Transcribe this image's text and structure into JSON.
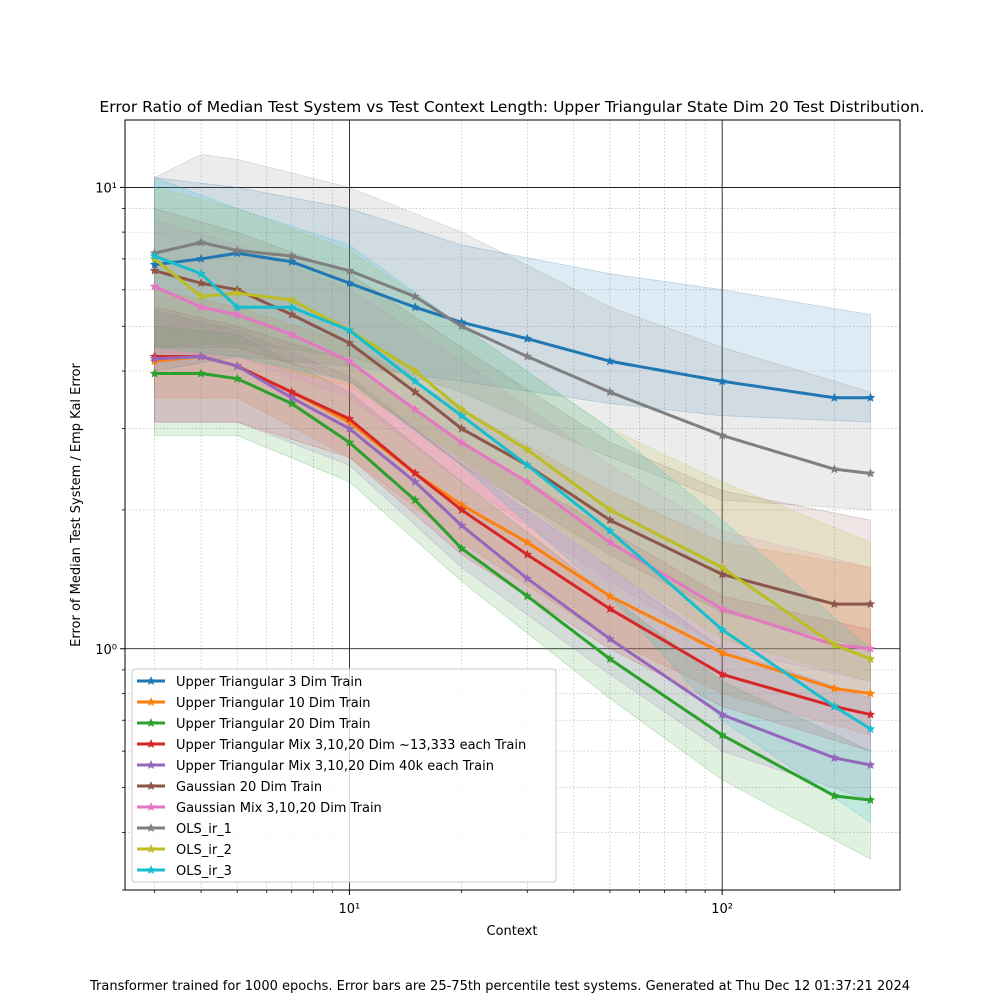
{
  "chart_data": {
    "type": "line",
    "title": "Error Ratio of Median Test System vs Test Context Length: Upper Triangular State Dim 20 Test Distribution.",
    "xlabel": "Context",
    "ylabel": "Error of Median Test System / Emp Kal Error",
    "footer": "Transformer trained for 1000 epochs. Error bars are 25-75th percentile test systems. Generated at Thu Dec 12 01:37:21 2024",
    "x_scale": "log",
    "y_scale": "log",
    "xlim": [
      2.5,
      300
    ],
    "ylim": [
      0.3,
      14
    ],
    "x_ticks": [
      {
        "value": 10,
        "label": "10¹"
      },
      {
        "value": 100,
        "label": "10²"
      }
    ],
    "y_ticks": [
      {
        "value": 1,
        "label": "10⁰"
      },
      {
        "value": 10,
        "label": "10¹"
      }
    ],
    "grid": true,
    "legend_position": "lower-left",
    "series": [
      {
        "name": "Upper Triangular 3 Dim Train",
        "color": "#1f77b4",
        "points": [
          [
            3,
            6.8
          ],
          [
            4,
            7.0
          ],
          [
            5,
            7.2
          ],
          [
            7,
            6.9
          ],
          [
            10,
            6.2
          ],
          [
            15,
            5.5
          ],
          [
            20,
            5.1
          ],
          [
            30,
            4.7
          ],
          [
            50,
            4.2
          ],
          [
            100,
            3.8
          ],
          [
            200,
            3.5
          ],
          [
            250,
            3.5
          ]
        ],
        "band_low": [
          [
            3,
            4.0
          ],
          [
            5,
            4.3
          ],
          [
            10,
            4.1
          ],
          [
            20,
            3.8
          ],
          [
            50,
            3.4
          ],
          [
            100,
            3.2
          ],
          [
            250,
            3.1
          ]
        ],
        "band_high": [
          [
            3,
            10.5
          ],
          [
            5,
            10.0
          ],
          [
            10,
            9.0
          ],
          [
            20,
            7.5
          ],
          [
            50,
            6.5
          ],
          [
            100,
            6.0
          ],
          [
            250,
            5.3
          ]
        ]
      },
      {
        "name": "Upper Triangular 10 Dim Train",
        "color": "#ff7f0e",
        "points": [
          [
            3,
            4.2
          ],
          [
            4,
            4.3
          ],
          [
            5,
            4.1
          ],
          [
            7,
            3.6
          ],
          [
            10,
            3.1
          ],
          [
            15,
            2.4
          ],
          [
            20,
            2.05
          ],
          [
            30,
            1.7
          ],
          [
            50,
            1.3
          ],
          [
            100,
            0.98
          ],
          [
            200,
            0.82
          ],
          [
            250,
            0.8
          ]
        ],
        "band_low": [
          [
            3,
            3.5
          ],
          [
            5,
            3.5
          ],
          [
            10,
            2.6
          ],
          [
            20,
            1.7
          ],
          [
            50,
            1.05
          ],
          [
            100,
            0.8
          ],
          [
            250,
            0.65
          ]
        ],
        "band_high": [
          [
            3,
            6.0
          ],
          [
            5,
            5.5
          ],
          [
            10,
            4.6
          ],
          [
            20,
            3.3
          ],
          [
            50,
            2.2
          ],
          [
            100,
            1.7
          ],
          [
            250,
            1.5
          ]
        ]
      },
      {
        "name": "Upper Triangular 20 Dim Train",
        "color": "#2ca02c",
        "points": [
          [
            3,
            3.95
          ],
          [
            4,
            3.95
          ],
          [
            5,
            3.85
          ],
          [
            7,
            3.4
          ],
          [
            10,
            2.8
          ],
          [
            15,
            2.1
          ],
          [
            20,
            1.65
          ],
          [
            30,
            1.3
          ],
          [
            50,
            0.95
          ],
          [
            100,
            0.65
          ],
          [
            200,
            0.48
          ],
          [
            250,
            0.47
          ]
        ],
        "band_low": [
          [
            3,
            2.9
          ],
          [
            5,
            2.9
          ],
          [
            10,
            2.3
          ],
          [
            20,
            1.4
          ],
          [
            50,
            0.78
          ],
          [
            100,
            0.52
          ],
          [
            250,
            0.35
          ]
        ],
        "band_high": [
          [
            3,
            5.0
          ],
          [
            5,
            4.8
          ],
          [
            10,
            3.6
          ],
          [
            20,
            2.3
          ],
          [
            50,
            1.3
          ],
          [
            100,
            0.85
          ],
          [
            250,
            0.6
          ]
        ]
      },
      {
        "name": "Upper Triangular Mix 3,10,20 Dim ~13,333 each Train",
        "color": "#d62728",
        "points": [
          [
            3,
            4.3
          ],
          [
            4,
            4.3
          ],
          [
            5,
            4.1
          ],
          [
            7,
            3.6
          ],
          [
            10,
            3.15
          ],
          [
            15,
            2.4
          ],
          [
            20,
            2.0
          ],
          [
            30,
            1.6
          ],
          [
            50,
            1.22
          ],
          [
            100,
            0.88
          ],
          [
            200,
            0.75
          ],
          [
            250,
            0.72
          ]
        ],
        "band_low": [
          [
            3,
            3.1
          ],
          [
            5,
            3.1
          ],
          [
            10,
            2.6
          ],
          [
            20,
            1.6
          ],
          [
            50,
            1.0
          ],
          [
            100,
            0.75
          ],
          [
            250,
            0.6
          ]
        ],
        "band_high": [
          [
            3,
            5.5
          ],
          [
            5,
            5.0
          ],
          [
            10,
            4.2
          ],
          [
            20,
            2.8
          ],
          [
            50,
            1.8
          ],
          [
            100,
            1.3
          ],
          [
            250,
            1.1
          ]
        ]
      },
      {
        "name": "Upper Triangular Mix 3,10,20 Dim 40k each Train",
        "color": "#9467bd",
        "points": [
          [
            3,
            4.25
          ],
          [
            4,
            4.3
          ],
          [
            5,
            4.1
          ],
          [
            7,
            3.5
          ],
          [
            10,
            3.0
          ],
          [
            15,
            2.3
          ],
          [
            20,
            1.85
          ],
          [
            30,
            1.42
          ],
          [
            50,
            1.05
          ],
          [
            100,
            0.72
          ],
          [
            200,
            0.58
          ],
          [
            250,
            0.56
          ]
        ],
        "band_low": [
          [
            3,
            3.1
          ],
          [
            5,
            3.1
          ],
          [
            10,
            2.5
          ],
          [
            20,
            1.5
          ],
          [
            50,
            0.88
          ],
          [
            100,
            0.6
          ],
          [
            250,
            0.47
          ]
        ],
        "band_high": [
          [
            3,
            5.4
          ],
          [
            5,
            4.9
          ],
          [
            10,
            3.9
          ],
          [
            20,
            2.5
          ],
          [
            50,
            1.5
          ],
          [
            100,
            1.0
          ],
          [
            250,
            0.78
          ]
        ]
      },
      {
        "name": "Gaussian 20 Dim Train",
        "color": "#8c564b",
        "points": [
          [
            3,
            6.6
          ],
          [
            4,
            6.2
          ],
          [
            5,
            6.0
          ],
          [
            7,
            5.3
          ],
          [
            10,
            4.6
          ],
          [
            15,
            3.6
          ],
          [
            20,
            3.0
          ],
          [
            30,
            2.5
          ],
          [
            50,
            1.9
          ],
          [
            100,
            1.45
          ],
          [
            200,
            1.25
          ],
          [
            250,
            1.25
          ]
        ],
        "band_low": [
          [
            3,
            4.5
          ],
          [
            5,
            4.5
          ],
          [
            10,
            3.8
          ],
          [
            20,
            2.5
          ],
          [
            50,
            1.6
          ],
          [
            100,
            1.2
          ],
          [
            250,
            1.0
          ]
        ],
        "band_high": [
          [
            3,
            9.0
          ],
          [
            5,
            8.0
          ],
          [
            10,
            6.5
          ],
          [
            20,
            4.5
          ],
          [
            50,
            2.8
          ],
          [
            100,
            2.2
          ],
          [
            250,
            1.9
          ]
        ]
      },
      {
        "name": "Gaussian Mix 3,10,20 Dim Train",
        "color": "#e377c2",
        "points": [
          [
            3,
            6.1
          ],
          [
            4,
            5.5
          ],
          [
            5,
            5.3
          ],
          [
            7,
            4.8
          ],
          [
            10,
            4.2
          ],
          [
            15,
            3.3
          ],
          [
            20,
            2.8
          ],
          [
            30,
            2.3
          ],
          [
            50,
            1.7
          ],
          [
            100,
            1.22
          ],
          [
            200,
            1.02
          ],
          [
            250,
            1.0
          ]
        ],
        "band_low": [
          [
            3,
            4.4
          ],
          [
            5,
            4.3
          ],
          [
            10,
            3.5
          ],
          [
            20,
            2.3
          ],
          [
            50,
            1.4
          ],
          [
            100,
            1.0
          ],
          [
            250,
            0.85
          ]
        ],
        "band_high": [
          [
            3,
            8.5
          ],
          [
            5,
            7.5
          ],
          [
            10,
            6.0
          ],
          [
            20,
            4.2
          ],
          [
            50,
            2.5
          ],
          [
            100,
            1.8
          ],
          [
            250,
            1.5
          ]
        ]
      },
      {
        "name": "OLS_ir_1",
        "color": "#7f7f7f",
        "points": [
          [
            3,
            7.2
          ],
          [
            4,
            7.6
          ],
          [
            5,
            7.3
          ],
          [
            7,
            7.1
          ],
          [
            10,
            6.6
          ],
          [
            15,
            5.8
          ],
          [
            20,
            5.0
          ],
          [
            30,
            4.3
          ],
          [
            50,
            3.6
          ],
          [
            100,
            2.9
          ],
          [
            200,
            2.45
          ],
          [
            250,
            2.4
          ]
        ],
        "band_low": [
          [
            3,
            4.5
          ],
          [
            5,
            4.6
          ],
          [
            10,
            4.3
          ],
          [
            20,
            3.6
          ],
          [
            50,
            2.6
          ],
          [
            100,
            2.1
          ],
          [
            250,
            2.0
          ]
        ],
        "band_high": [
          [
            3,
            10.5
          ],
          [
            4,
            11.8
          ],
          [
            5,
            11.5
          ],
          [
            10,
            10.0
          ],
          [
            20,
            8.0
          ],
          [
            50,
            5.5
          ],
          [
            100,
            4.5
          ],
          [
            250,
            3.6
          ]
        ]
      },
      {
        "name": "OLS_ir_2",
        "color": "#bcbd22",
        "points": [
          [
            3,
            7.0
          ],
          [
            4,
            5.8
          ],
          [
            5,
            5.9
          ],
          [
            7,
            5.7
          ],
          [
            10,
            4.9
          ],
          [
            15,
            4.0
          ],
          [
            20,
            3.3
          ],
          [
            30,
            2.7
          ],
          [
            50,
            2.0
          ],
          [
            100,
            1.5
          ],
          [
            200,
            1.02
          ],
          [
            250,
            0.95
          ]
        ],
        "band_low": [
          [
            3,
            4.5
          ],
          [
            5,
            4.3
          ],
          [
            10,
            3.7
          ],
          [
            20,
            2.6
          ],
          [
            50,
            1.5
          ],
          [
            100,
            1.05
          ],
          [
            250,
            0.85
          ]
        ],
        "band_high": [
          [
            3,
            10.0
          ],
          [
            5,
            9.0
          ],
          [
            10,
            7.3
          ],
          [
            20,
            5.0
          ],
          [
            50,
            3.0
          ],
          [
            100,
            2.3
          ],
          [
            250,
            1.7
          ]
        ]
      },
      {
        "name": "OLS_ir_3",
        "color": "#17becf",
        "points": [
          [
            3,
            7.1
          ],
          [
            4,
            6.5
          ],
          [
            5,
            5.5
          ],
          [
            7,
            5.5
          ],
          [
            10,
            4.9
          ],
          [
            15,
            3.8
          ],
          [
            20,
            3.2
          ],
          [
            30,
            2.5
          ],
          [
            50,
            1.8
          ],
          [
            100,
            1.1
          ],
          [
            200,
            0.75
          ],
          [
            250,
            0.67
          ]
        ],
        "band_low": [
          [
            3,
            4.5
          ],
          [
            5,
            4.3
          ],
          [
            10,
            3.8
          ],
          [
            20,
            2.5
          ],
          [
            50,
            1.3
          ],
          [
            100,
            0.7
          ],
          [
            250,
            0.42
          ]
        ],
        "band_high": [
          [
            3,
            10.5
          ],
          [
            5,
            9.0
          ],
          [
            10,
            7.5
          ],
          [
            20,
            5.0
          ],
          [
            50,
            3.0
          ],
          [
            100,
            1.9
          ],
          [
            250,
            1.0
          ]
        ]
      }
    ]
  }
}
